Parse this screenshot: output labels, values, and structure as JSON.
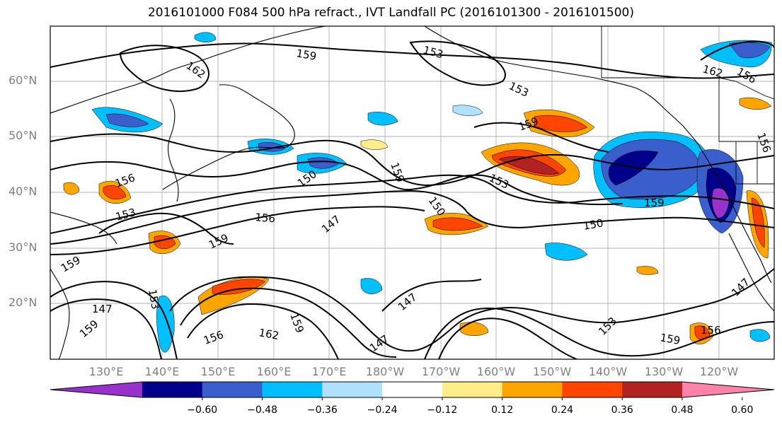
{
  "title": "2016101000 F084 500 hPa refract., IVT Landfall PC (2016101300 - 2016101500)",
  "lat_labels": [
    "60°N",
    "50°N",
    "40°N",
    "30°N",
    "20°N"
  ],
  "lon_labels": [
    "130°E",
    "140°E",
    "150°E",
    "160°E",
    "170°E",
    "180°W",
    "170°W",
    "160°W",
    "150°W",
    "140°W",
    "130°W",
    "120°W"
  ],
  "colorbar": {
    "colors": [
      "#9932cc",
      "#00008b",
      "#3a5fcd",
      "#00bfff",
      "#b0e2ff",
      "#ffffff",
      "#ffec8b",
      "#ffa500",
      "#ff4500",
      "#b22222",
      "#ff82ab"
    ],
    "ticks": [
      "−0.60",
      "−0.48",
      "−0.36",
      "−0.24",
      "−0.12",
      "0.12",
      "0.24",
      "0.36",
      "0.48",
      "0.60"
    ]
  },
  "contour_labels": [
    "159",
    "153",
    "162",
    "159",
    "153",
    "150",
    "159",
    "153",
    "156",
    "156",
    "153",
    "159",
    "147",
    "150",
    "156",
    "150",
    "147",
    "159",
    "156",
    "162",
    "162",
    "159",
    "147",
    "153",
    "147",
    "159",
    "153",
    "159",
    "156",
    "147",
    "159",
    "156"
  ]
}
